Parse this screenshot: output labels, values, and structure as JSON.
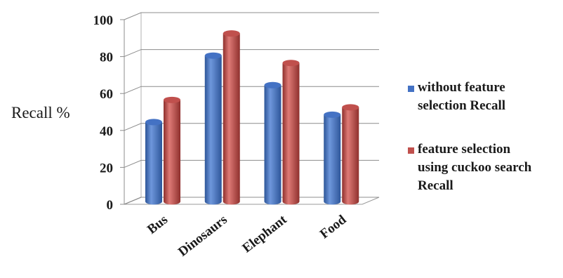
{
  "chart_data": {
    "type": "bar",
    "categories": [
      "Bus",
      "Dinosaurs",
      "Elephant",
      "Food"
    ],
    "series": [
      {
        "name": "without feature selection Recall",
        "values": [
          43,
          79,
          63,
          47
        ],
        "color": "#4472C4"
      },
      {
        "name": "feature selection using cuckoo search Recall",
        "values": [
          55,
          91,
          75,
          51
        ],
        "color": "#C0504D"
      }
    ],
    "ylabel": "Recall %",
    "yticks": [
      0,
      20,
      40,
      60,
      80,
      100
    ],
    "ylim": [
      0,
      100
    ],
    "grid": true,
    "legend_position": "right",
    "style": "3d-cylinder"
  }
}
